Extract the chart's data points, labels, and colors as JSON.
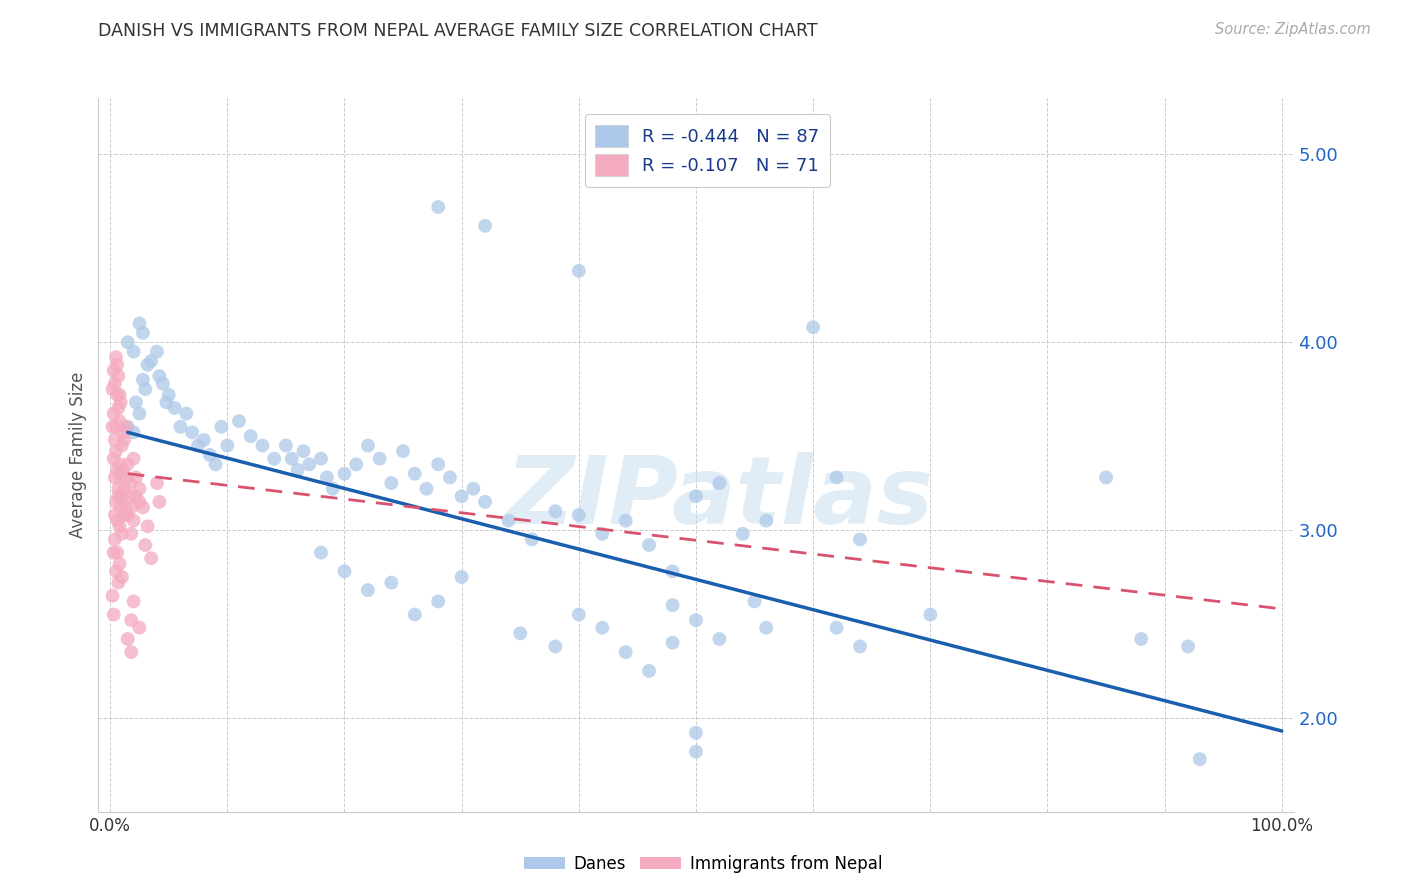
{
  "title": "DANISH VS IMMIGRANTS FROM NEPAL AVERAGE FAMILY SIZE CORRELATION CHART",
  "source": "Source: ZipAtlas.com",
  "ylabel": "Average Family Size",
  "ylim": [
    1.5,
    5.3
  ],
  "xlim": [
    -0.01,
    1.01
  ],
  "yticks": [
    2.0,
    3.0,
    4.0,
    5.0
  ],
  "xticks": [
    0.0,
    0.1,
    0.2,
    0.3,
    0.4,
    0.5,
    0.6,
    0.7,
    0.8,
    0.9,
    1.0
  ],
  "legend_entries": [
    {
      "label": "R = -0.444   N = 87",
      "color": "#adc8e8"
    },
    {
      "label": "R = -0.107   N = 71",
      "color": "#f4aabf"
    }
  ],
  "legend_labels": [
    "Danes",
    "Immigrants from Nepal"
  ],
  "danes_color": "#adc8e8",
  "nepal_color": "#f4aabf",
  "danes_line_color": "#1a5fad",
  "nepal_line_color": "#d9536e",
  "watermark": "ZIPatlas",
  "background_color": "#ffffff",
  "danes_line": [
    [
      0.015,
      3.52
    ],
    [
      1.0,
      1.93
    ]
  ],
  "nepal_line": [
    [
      0.015,
      3.3
    ],
    [
      1.0,
      2.58
    ]
  ],
  "danes_scatter": [
    [
      0.015,
      3.55
    ],
    [
      0.02,
      3.52
    ],
    [
      0.022,
      3.68
    ],
    [
      0.025,
      3.62
    ],
    [
      0.028,
      3.8
    ],
    [
      0.03,
      3.75
    ],
    [
      0.032,
      3.88
    ],
    [
      0.035,
      3.9
    ],
    [
      0.015,
      4.0
    ],
    [
      0.02,
      3.95
    ],
    [
      0.025,
      4.1
    ],
    [
      0.028,
      4.05
    ],
    [
      0.04,
      3.95
    ],
    [
      0.042,
      3.82
    ],
    [
      0.045,
      3.78
    ],
    [
      0.048,
      3.68
    ],
    [
      0.05,
      3.72
    ],
    [
      0.055,
      3.65
    ],
    [
      0.06,
      3.55
    ],
    [
      0.065,
      3.62
    ],
    [
      0.07,
      3.52
    ],
    [
      0.075,
      3.45
    ],
    [
      0.08,
      3.48
    ],
    [
      0.085,
      3.4
    ],
    [
      0.09,
      3.35
    ],
    [
      0.095,
      3.55
    ],
    [
      0.1,
      3.45
    ],
    [
      0.11,
      3.58
    ],
    [
      0.12,
      3.5
    ],
    [
      0.13,
      3.45
    ],
    [
      0.14,
      3.38
    ],
    [
      0.15,
      3.45
    ],
    [
      0.155,
      3.38
    ],
    [
      0.16,
      3.32
    ],
    [
      0.165,
      3.42
    ],
    [
      0.17,
      3.35
    ],
    [
      0.18,
      3.38
    ],
    [
      0.185,
      3.28
    ],
    [
      0.19,
      3.22
    ],
    [
      0.2,
      3.3
    ],
    [
      0.21,
      3.35
    ],
    [
      0.22,
      3.45
    ],
    [
      0.23,
      3.38
    ],
    [
      0.24,
      3.25
    ],
    [
      0.25,
      3.42
    ],
    [
      0.26,
      3.3
    ],
    [
      0.27,
      3.22
    ],
    [
      0.28,
      3.35
    ],
    [
      0.29,
      3.28
    ],
    [
      0.3,
      3.18
    ],
    [
      0.31,
      3.22
    ],
    [
      0.18,
      2.88
    ],
    [
      0.2,
      2.78
    ],
    [
      0.22,
      2.68
    ],
    [
      0.24,
      2.72
    ],
    [
      0.26,
      2.55
    ],
    [
      0.28,
      2.62
    ],
    [
      0.3,
      2.75
    ],
    [
      0.32,
      3.15
    ],
    [
      0.34,
      3.05
    ],
    [
      0.36,
      2.95
    ],
    [
      0.38,
      3.1
    ],
    [
      0.4,
      3.08
    ],
    [
      0.42,
      2.98
    ],
    [
      0.44,
      3.05
    ],
    [
      0.35,
      2.45
    ],
    [
      0.38,
      2.38
    ],
    [
      0.4,
      2.55
    ],
    [
      0.42,
      2.48
    ],
    [
      0.44,
      2.35
    ],
    [
      0.46,
      2.25
    ],
    [
      0.48,
      2.4
    ],
    [
      0.5,
      3.18
    ],
    [
      0.52,
      3.25
    ],
    [
      0.54,
      2.98
    ],
    [
      0.56,
      3.05
    ],
    [
      0.48,
      2.6
    ],
    [
      0.5,
      2.52
    ],
    [
      0.52,
      2.42
    ],
    [
      0.55,
      2.62
    ],
    [
      0.56,
      2.48
    ],
    [
      0.28,
      4.72
    ],
    [
      0.32,
      4.62
    ],
    [
      0.4,
      4.38
    ],
    [
      0.6,
      4.08
    ],
    [
      0.62,
      3.28
    ],
    [
      0.64,
      2.95
    ],
    [
      0.85,
      3.28
    ],
    [
      0.88,
      2.42
    ],
    [
      0.92,
      2.38
    ],
    [
      0.93,
      1.78
    ],
    [
      0.5,
      1.82
    ],
    [
      0.5,
      1.92
    ],
    [
      0.62,
      2.48
    ],
    [
      0.64,
      2.38
    ],
    [
      0.7,
      2.55
    ],
    [
      0.46,
      2.92
    ],
    [
      0.48,
      2.78
    ]
  ],
  "nepal_scatter": [
    [
      0.002,
      3.55
    ],
    [
      0.003,
      3.62
    ],
    [
      0.004,
      3.48
    ],
    [
      0.005,
      3.55
    ],
    [
      0.006,
      3.72
    ],
    [
      0.007,
      3.65
    ],
    [
      0.008,
      3.58
    ],
    [
      0.009,
      3.68
    ],
    [
      0.01,
      3.45
    ],
    [
      0.011,
      3.52
    ],
    [
      0.012,
      3.48
    ],
    [
      0.013,
      3.55
    ],
    [
      0.003,
      3.85
    ],
    [
      0.004,
      3.78
    ],
    [
      0.005,
      3.92
    ],
    [
      0.006,
      3.88
    ],
    [
      0.002,
      3.75
    ],
    [
      0.007,
      3.82
    ],
    [
      0.008,
      3.72
    ],
    [
      0.003,
      3.38
    ],
    [
      0.004,
      3.28
    ],
    [
      0.005,
      3.42
    ],
    [
      0.006,
      3.32
    ],
    [
      0.007,
      3.22
    ],
    [
      0.008,
      3.35
    ],
    [
      0.009,
      3.28
    ],
    [
      0.01,
      3.18
    ],
    [
      0.011,
      3.32
    ],
    [
      0.012,
      3.22
    ],
    [
      0.013,
      3.12
    ],
    [
      0.014,
      3.28
    ],
    [
      0.015,
      3.35
    ],
    [
      0.016,
      3.18
    ],
    [
      0.017,
      3.25
    ],
    [
      0.018,
      3.12
    ],
    [
      0.004,
      3.08
    ],
    [
      0.005,
      3.15
    ],
    [
      0.006,
      3.05
    ],
    [
      0.007,
      3.18
    ],
    [
      0.008,
      3.02
    ],
    [
      0.009,
      3.12
    ],
    [
      0.01,
      2.98
    ],
    [
      0.012,
      3.08
    ],
    [
      0.003,
      2.88
    ],
    [
      0.004,
      2.95
    ],
    [
      0.005,
      2.78
    ],
    [
      0.006,
      2.88
    ],
    [
      0.007,
      2.72
    ],
    [
      0.008,
      2.82
    ],
    [
      0.01,
      2.75
    ],
    [
      0.015,
      3.08
    ],
    [
      0.018,
      2.98
    ],
    [
      0.02,
      3.05
    ],
    [
      0.022,
      3.18
    ],
    [
      0.025,
      3.22
    ],
    [
      0.028,
      3.12
    ],
    [
      0.03,
      2.92
    ],
    [
      0.032,
      3.02
    ],
    [
      0.035,
      2.85
    ],
    [
      0.02,
      3.38
    ],
    [
      0.022,
      3.28
    ],
    [
      0.025,
      3.15
    ],
    [
      0.018,
      2.52
    ],
    [
      0.02,
      2.62
    ],
    [
      0.025,
      2.48
    ],
    [
      0.002,
      2.65
    ],
    [
      0.003,
      2.55
    ],
    [
      0.04,
      3.25
    ],
    [
      0.042,
      3.15
    ],
    [
      0.015,
      2.42
    ],
    [
      0.018,
      2.35
    ]
  ]
}
